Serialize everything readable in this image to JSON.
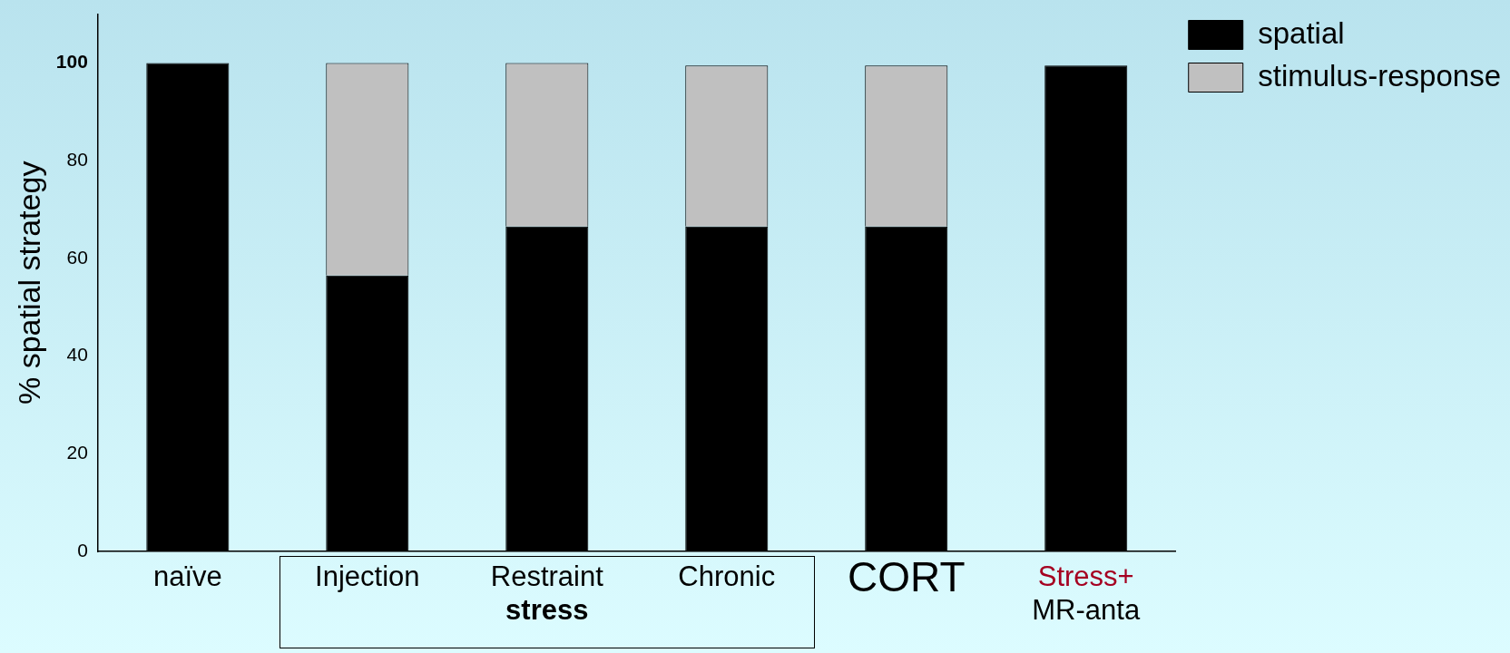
{
  "chart_data": {
    "type": "bar",
    "stacked": true,
    "ylabel": "% spatial strategy",
    "categories": [
      "naïve",
      "Injection",
      "Restraint",
      "Chronic",
      "CORT",
      "Stress+\nMR-anta"
    ],
    "series": [
      {
        "name": "spatial",
        "color": "#000000",
        "values": [
          100,
          56.5,
          66.5,
          66.5,
          66.5,
          99.5
        ]
      },
      {
        "name": "stimulus-response",
        "color": "#c0c0c0",
        "values": [
          0,
          43.5,
          33.5,
          33,
          33,
          0
        ]
      }
    ],
    "ylim": [
      0,
      110
    ],
    "yticks": [
      0,
      20,
      40,
      60,
      80,
      {
        "value": 100,
        "label": "100"
      }
    ],
    "annotations": [
      "stress"
    ],
    "legend": "top right",
    "grid": false
  }
}
